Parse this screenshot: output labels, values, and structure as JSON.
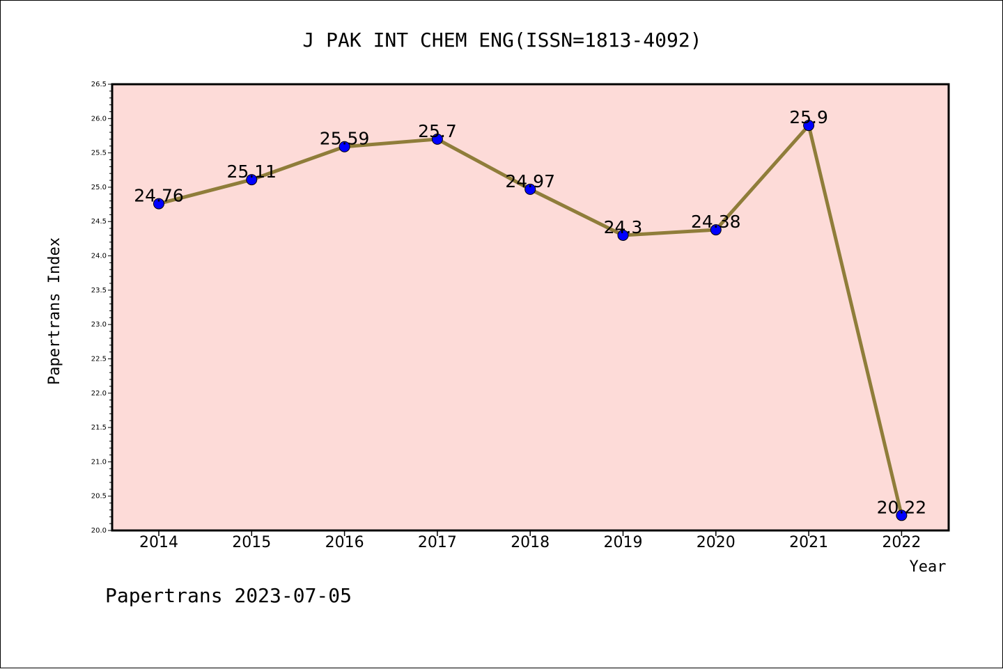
{
  "chart_data": {
    "type": "line",
    "title": "J PAK INT CHEM ENG(ISSN=1813-4092)",
    "xlabel": "Year",
    "ylabel": "Papertrans Index",
    "categories": [
      "2014",
      "2015",
      "2016",
      "2017",
      "2018",
      "2019",
      "2020",
      "2021",
      "2022"
    ],
    "series": [
      {
        "values": [
          24.76,
          25.11,
          25.59,
          25.7,
          24.97,
          24.3,
          24.38,
          25.9,
          20.22
        ],
        "data_labels": [
          "24.76",
          "25.11",
          "25.59",
          "25.7",
          "24.97",
          "24.3",
          "24.38",
          "25.9",
          "20.22"
        ]
      }
    ],
    "ylim": [
      20.0,
      26.5
    ],
    "yticks": [
      "20.0",
      "20.5",
      "21.0",
      "21.5",
      "22.0",
      "22.5",
      "23.0",
      "23.5",
      "24.0",
      "24.5",
      "25.0",
      "25.5",
      "26.0",
      "26.5"
    ],
    "grid": false,
    "colors": {
      "plot_background": "#fddbd8",
      "line": "#8f7d3a",
      "marker": "#0000ff",
      "axis": "#000000"
    }
  },
  "footer": "Papertrans 2023-07-05"
}
